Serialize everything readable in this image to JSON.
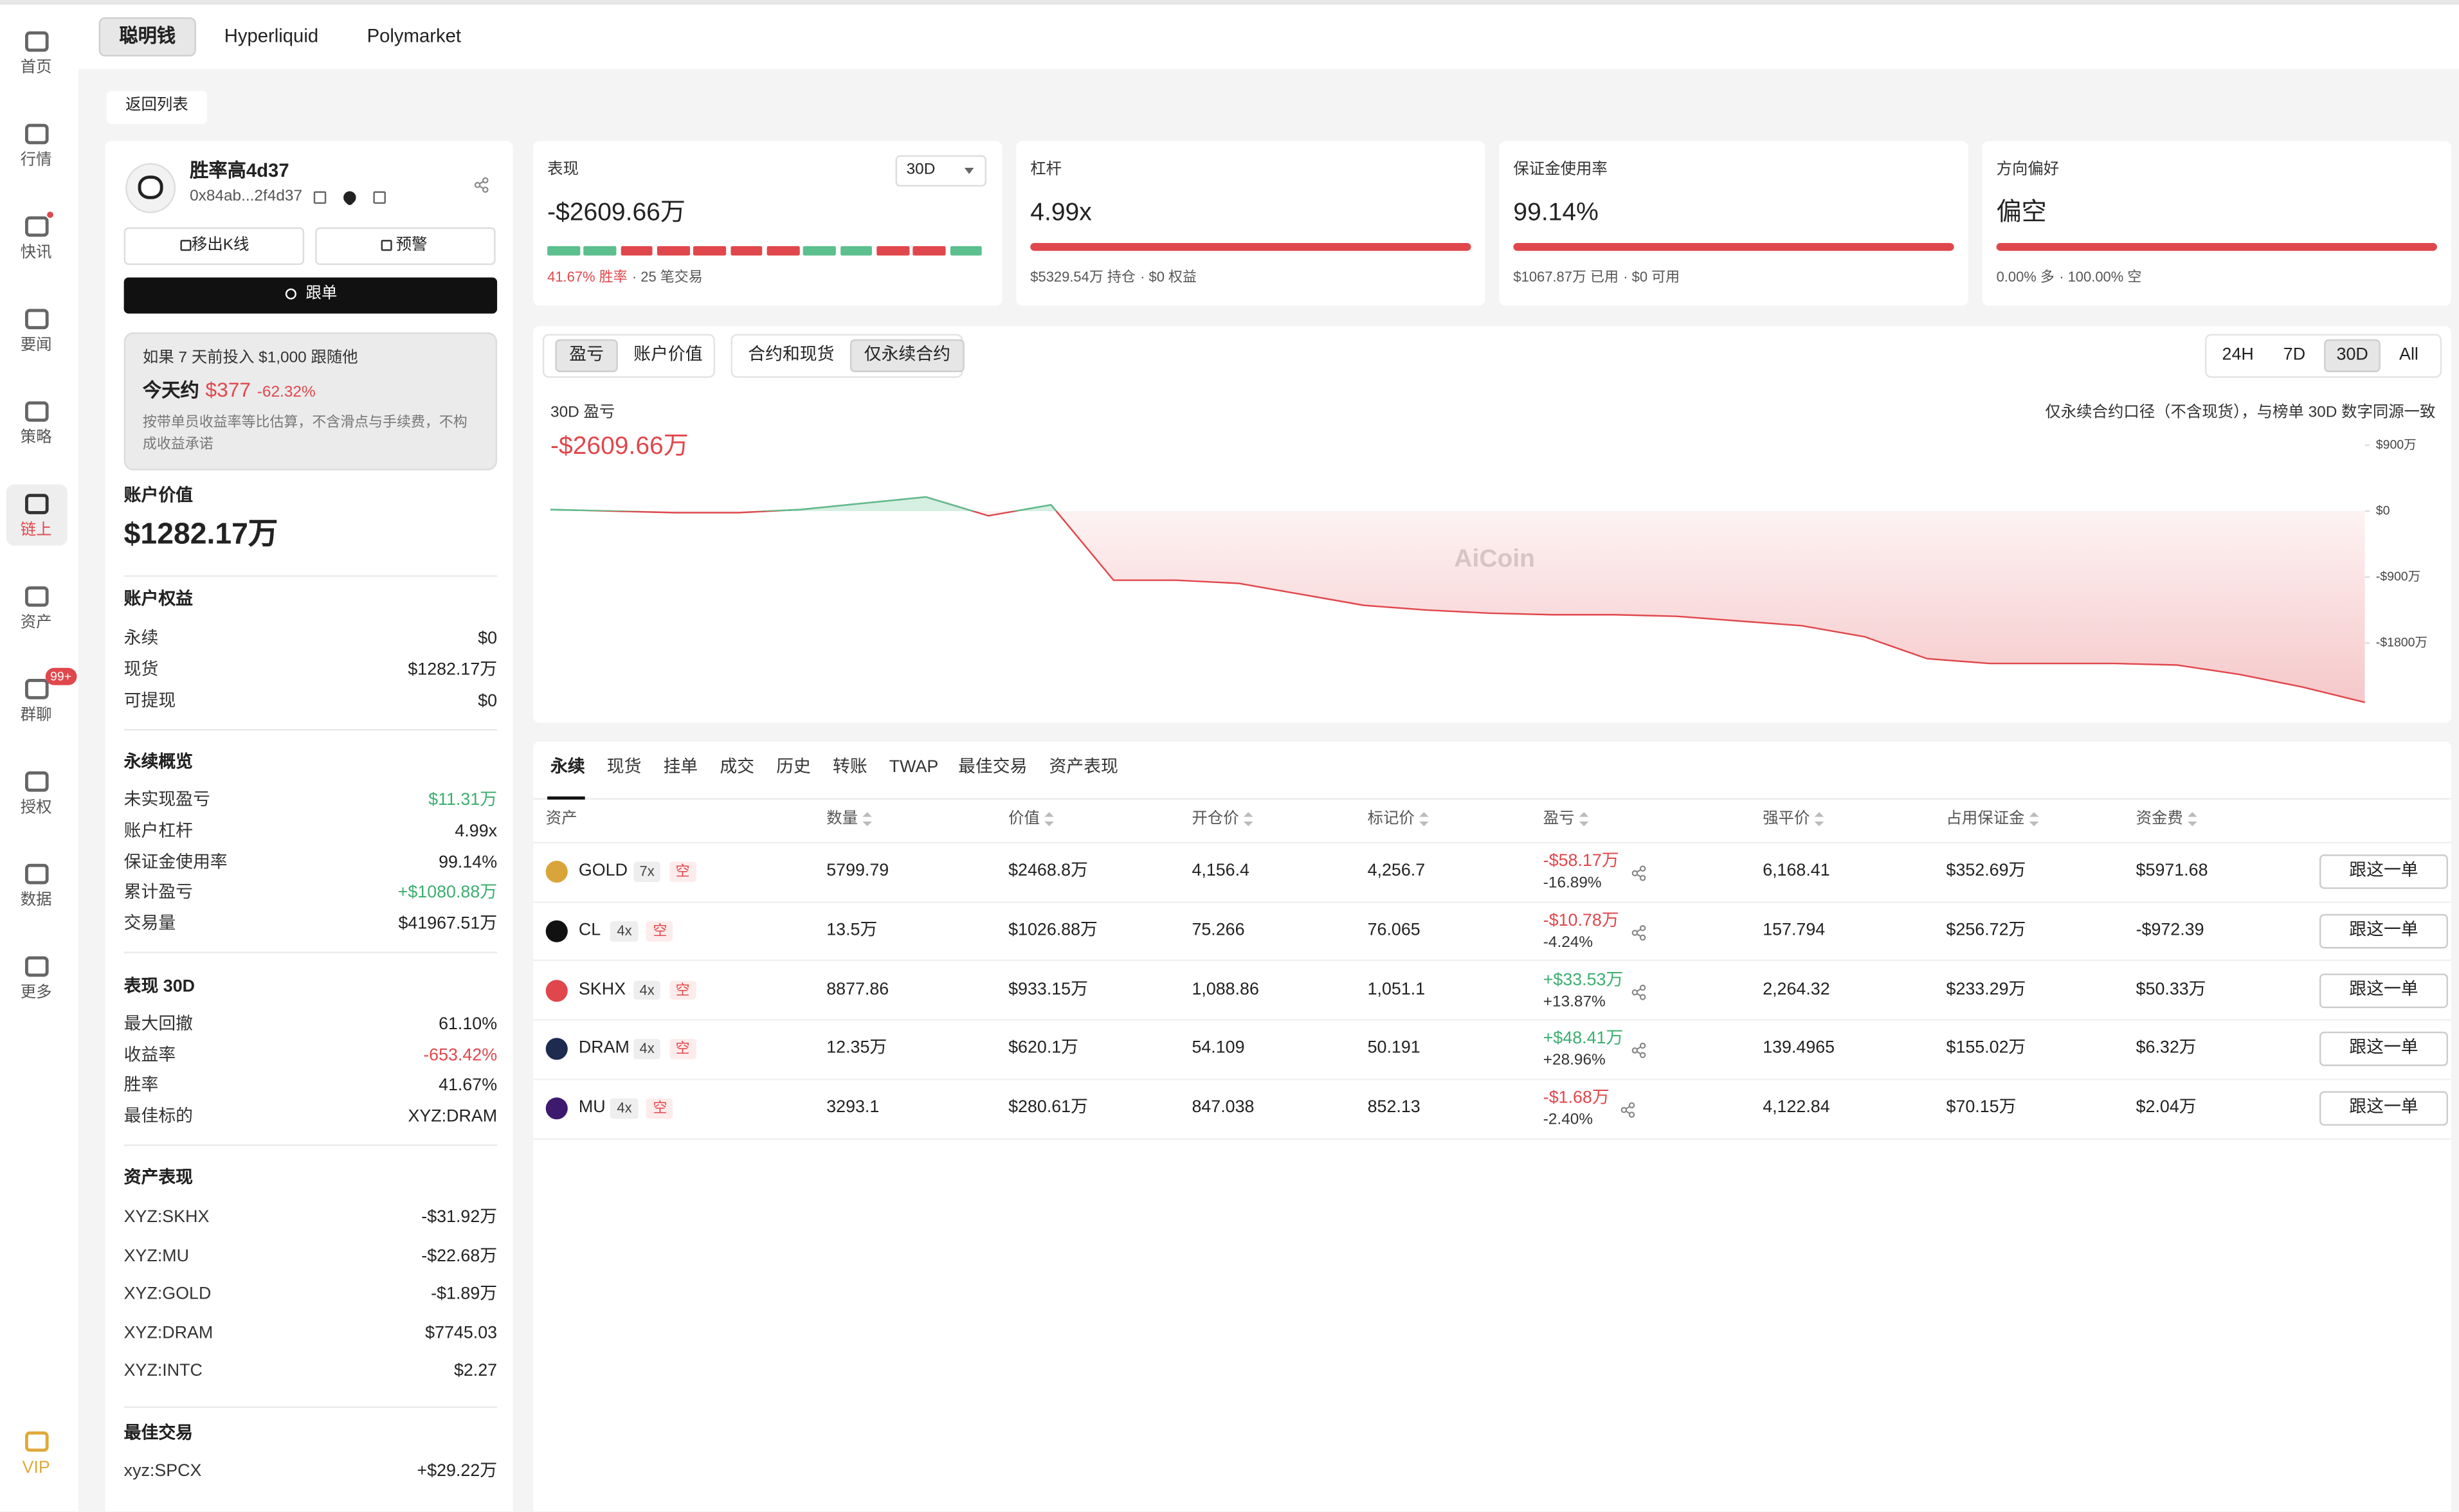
{
  "nav_tabs": {
    "items": [
      "聪明钱",
      "Hyperliquid",
      "Polymarket"
    ],
    "active": 0
  },
  "sidebar": {
    "items": [
      "首页",
      "行情",
      "快讯",
      "要闻",
      "策略",
      "链上",
      "资产",
      "群聊",
      "授权",
      "数据",
      "更多",
      "VIP"
    ],
    "active": 5,
    "badge": "99+",
    "badge_item": 7
  },
  "back": "返回列表",
  "profile": {
    "name": "胜率高4d37",
    "address": "0x84ab...2f4d37",
    "buttons": [
      "移出K线",
      "预警"
    ],
    "follow": "跟单"
  },
  "simulation": {
    "title": "如果 7 天前投入 $1,000 跟随他",
    "today_label": "今天约",
    "today_value": "$377",
    "change": "-62.32%",
    "note": "按带单员收益率等比估算，不含滑点与手续费，不构成收益承诺"
  },
  "account_value": {
    "label": "账户价值",
    "value": "$1282.17万"
  },
  "sections": [
    {
      "title": "账户权益",
      "rows": [
        {
          "label": "永续",
          "value": "$0"
        },
        {
          "label": "现货",
          "value": "$1282.17万"
        },
        {
          "label": "可提现",
          "value": "$0"
        }
      ]
    },
    {
      "title": "永续概览",
      "rows": [
        {
          "label": "未实现盈亏",
          "value": "$11.31万",
          "color": "#3dae6f"
        },
        {
          "label": "账户杠杆",
          "value": "4.99x"
        },
        {
          "label": "保证金使用率",
          "value": "99.14%"
        },
        {
          "label": "累计盈亏",
          "value": "+$1080.88万",
          "color": "#3dae6f"
        },
        {
          "label": "交易量",
          "value": "$41967.51万"
        }
      ]
    },
    {
      "title": "表现 30D",
      "rows": [
        {
          "label": "最大回撤",
          "value": "61.10%"
        },
        {
          "label": "收益率",
          "value": "-653.42%",
          "color": "#e0474c"
        },
        {
          "label": "胜率",
          "value": "41.67%"
        },
        {
          "label": "最佳标的",
          "value": "XYZ:DRAM"
        }
      ]
    },
    {
      "title": "资产表现",
      "rows": [
        {
          "label": "XYZ:SKHX",
          "value": "-$31.92万"
        },
        {
          "label": "XYZ:MU",
          "value": "-$22.68万"
        },
        {
          "label": "XYZ:GOLD",
          "value": "-$1.89万"
        },
        {
          "label": "XYZ:DRAM",
          "value": "$7745.03"
        },
        {
          "label": "XYZ:INTC",
          "value": "$2.27"
        }
      ]
    },
    {
      "title": "最佳交易",
      "rows": [
        {
          "label": "xyz:SPCX",
          "value": "+$29.22万"
        }
      ]
    }
  ],
  "stats": [
    {
      "title": "表现",
      "value": "-$2609.66万",
      "selector": "30D",
      "segments": [
        "#5bbf8e",
        "#5bbf8e",
        "#e0474c",
        "#e0474c",
        "#e0474c",
        "#e0474c",
        "#e0474c",
        "#5bbf8e",
        "#5bbf8e",
        "#e0474c",
        "#e0474c",
        "#5bbf8e"
      ],
      "notes": [
        {
          "text": "41.67% 胜率",
          "color": "#e0474c"
        },
        {
          "text": "· 25 笔交易"
        }
      ]
    },
    {
      "title": "杠杆",
      "value": "4.99x",
      "notes": [
        {
          "text": "$5329.54万 持仓"
        },
        {
          "text": "· $0 权益"
        }
      ]
    },
    {
      "title": "保证金使用率",
      "value": "99.14%",
      "notes": [
        {
          "text": "$1067.87万 已用"
        },
        {
          "text": "· $0 可用"
        }
      ]
    },
    {
      "title": "方向偏好",
      "value": "偏空",
      "notes": [
        {
          "text": "0.00% 多"
        },
        {
          "text": "· 100.00% 空"
        }
      ]
    }
  ],
  "pnl_chart": {
    "type": "line",
    "tabs": [
      [
        "盈亏",
        "账户价值"
      ],
      [
        "合约和现货",
        "仅永续合约"
      ]
    ],
    "active_tabs": [
      0,
      1
    ],
    "ranges": [
      "24H",
      "7D",
      "30D",
      "All"
    ],
    "active_range": 2,
    "label": "30D 盈亏",
    "value": "-$2609.66万",
    "note": "仅永续合约口径（不含现货），与榜单 30D 数字同源一致",
    "watermark": "AiCoin",
    "color": "#e0474c",
    "up_color": "#5bbf8e",
    "values": [
      21,
      0,
      -21,
      -21,
      21,
      107,
      193,
      -64,
      86,
      -943,
      -943,
      -986,
      -1136,
      -1286,
      -1350,
      -1393,
      -1414,
      -1414,
      -1436,
      -1500,
      -1564,
      -1714,
      -2014,
      -2079,
      -2079,
      -2079,
      -2100,
      -2229,
      -2400,
      -2609.66
    ],
    "ylim": [
      -2760,
      985
    ],
    "yticks": [
      {
        "value": 900,
        "label": "$900万"
      },
      {
        "value": 0,
        "label": "$0"
      },
      {
        "value": -900,
        "label": "-$900万"
      },
      {
        "value": -1800,
        "label": "-$1800万"
      }
    ]
  },
  "positions": {
    "tabs": [
      "永续",
      "现货",
      "挂单",
      "成交",
      "历史",
      "转账",
      "TWAP",
      "最佳交易",
      "资产表现"
    ],
    "active_tab": 0,
    "headers": [
      "资产",
      "数量",
      "价值",
      "开仓价",
      "标记价",
      "盈亏",
      "强平价",
      "占用保证金",
      "资金费"
    ],
    "action": "跟这一单",
    "rows": [
      {
        "asset": "GOLD",
        "icon_color": "#d9a53b",
        "leverage": "7x",
        "side": "空",
        "cells": [
          "5799.79",
          "$2468.8万",
          "4,156.4",
          "4,256.7"
        ],
        "pnl": "-$58.17万",
        "pnl_pct": "-16.89%",
        "pnl_color": "#e0474c",
        "rest": [
          "6,168.41",
          "$352.69万",
          "$5971.68"
        ]
      },
      {
        "asset": "CL",
        "icon_color": "#111111",
        "leverage": "4x",
        "side": "空",
        "cells": [
          "13.5万",
          "$1026.88万",
          "75.266",
          "76.065"
        ],
        "pnl": "-$10.78万",
        "pnl_pct": "-4.24%",
        "pnl_color": "#e0474c",
        "rest": [
          "157.794",
          "$256.72万",
          "-$972.39"
        ]
      },
      {
        "asset": "SKHX",
        "icon_color": "#e0474c",
        "leverage": "4x",
        "side": "空",
        "cells": [
          "8877.86",
          "$933.15万",
          "1,088.86",
          "1,051.1"
        ],
        "pnl": "+$33.53万",
        "pnl_pct": "+13.87%",
        "pnl_color": "#3dae6f",
        "rest": [
          "2,264.32",
          "$233.29万",
          "$50.33万"
        ]
      },
      {
        "asset": "DRAM",
        "icon_color": "#1d2b4f",
        "leverage": "4x",
        "side": "空",
        "cells": [
          "12.35万",
          "$620.1万",
          "54.109",
          "50.191"
        ],
        "pnl": "+$48.41万",
        "pnl_pct": "+28.96%",
        "pnl_color": "#3dae6f",
        "rest": [
          "139.4965",
          "$155.02万",
          "$6.32万"
        ]
      },
      {
        "asset": "MU",
        "icon_color": "#3d1a6e",
        "leverage": "4x",
        "side": "空",
        "cells": [
          "3293.1",
          "$280.61万",
          "847.038",
          "852.13"
        ],
        "pnl": "-$1.68万",
        "pnl_pct": "-2.40%",
        "pnl_color": "#e0474c",
        "rest": [
          "4,122.84",
          "$70.15万",
          "$2.04万"
        ]
      }
    ]
  }
}
